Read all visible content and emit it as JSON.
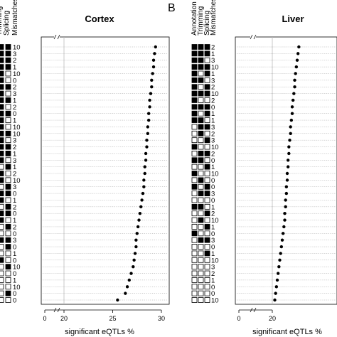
{
  "chart_data": [
    {
      "type": "scatter",
      "panel_label": "",
      "title": "Cortex",
      "xlabel": "significant eQTLs %",
      "xlim": [
        0,
        30
      ],
      "x_break_after": 0,
      "xticks": [
        0,
        20,
        25,
        30
      ],
      "xtick_labels": [
        "0",
        "20",
        "25",
        "30"
      ],
      "row_labels": [
        "Trimming",
        "Splicing",
        "Mismatches"
      ],
      "row_label_display": [
        "Trimming",
        "Splicing",
        "Mismatches"
      ],
      "cutoff_label_col": "visible",
      "rows": [
        {
          "flags": [
            1,
            1,
            1
          ],
          "mismatches": "10",
          "value": 29.4
        },
        {
          "flags": [
            1,
            1,
            1
          ],
          "mismatches": "3",
          "value": 29.3
        },
        {
          "flags": [
            1,
            1,
            1
          ],
          "mismatches": "2",
          "value": 29.2
        },
        {
          "flags": [
            1,
            1,
            0
          ],
          "mismatches": "1",
          "value": 29.2
        },
        {
          "flags": [
            1,
            0,
            1
          ],
          "mismatches": "10",
          "value": 29.1
        },
        {
          "flags": [
            1,
            0,
            0
          ],
          "mismatches": "0",
          "value": 29.0
        },
        {
          "flags": [
            1,
            1,
            1
          ],
          "mismatches": "2",
          "value": 29.0
        },
        {
          "flags": [
            1,
            0,
            1
          ],
          "mismatches": "3",
          "value": 28.9
        },
        {
          "flags": [
            1,
            1,
            0
          ],
          "mismatches": "1",
          "value": 28.8
        },
        {
          "flags": [
            1,
            0,
            1
          ],
          "mismatches": "2",
          "value": 28.8
        },
        {
          "flags": [
            1,
            1,
            0
          ],
          "mismatches": "0",
          "value": 28.7
        },
        {
          "flags": [
            1,
            0,
            1
          ],
          "mismatches": "1",
          "value": 28.7
        },
        {
          "flags": [
            1,
            0,
            0
          ],
          "mismatches": "10",
          "value": 28.6
        },
        {
          "flags": [
            1,
            1,
            1
          ],
          "mismatches": "10",
          "value": 28.6
        },
        {
          "flags": [
            1,
            0,
            0
          ],
          "mismatches": "3",
          "value": 28.5
        },
        {
          "flags": [
            1,
            1,
            1
          ],
          "mismatches": "2",
          "value": 28.5
        },
        {
          "flags": [
            1,
            1,
            0
          ],
          "mismatches": "1",
          "value": 28.4
        },
        {
          "flags": [
            1,
            0,
            1
          ],
          "mismatches": "3",
          "value": 28.4
        },
        {
          "flags": [
            0,
            1,
            0
          ],
          "mismatches": "1",
          "value": 28.3
        },
        {
          "flags": [
            1,
            0,
            1
          ],
          "mismatches": "2",
          "value": 28.3
        },
        {
          "flags": [
            1,
            0,
            0
          ],
          "mismatches": "10",
          "value": 28.2
        },
        {
          "flags": [
            0,
            1,
            1
          ],
          "mismatches": "3",
          "value": 28.2
        },
        {
          "flags": [
            1,
            1,
            0
          ],
          "mismatches": "0",
          "value": 28.1
        },
        {
          "flags": [
            1,
            0,
            1
          ],
          "mismatches": "1",
          "value": 28.0
        },
        {
          "flags": [
            0,
            1,
            0
          ],
          "mismatches": "2",
          "value": 27.9
        },
        {
          "flags": [
            1,
            1,
            1
          ],
          "mismatches": "0",
          "value": 27.8
        },
        {
          "flags": [
            1,
            0,
            1
          ],
          "mismatches": "1",
          "value": 27.7
        },
        {
          "flags": [
            0,
            1,
            0
          ],
          "mismatches": "2",
          "value": 27.6
        },
        {
          "flags": [
            0,
            0,
            1
          ],
          "mismatches": "0",
          "value": 27.5
        },
        {
          "flags": [
            1,
            1,
            0
          ],
          "mismatches": "3",
          "value": 27.4
        },
        {
          "flags": [
            0,
            1,
            1
          ],
          "mismatches": "0",
          "value": 27.4
        },
        {
          "flags": [
            0,
            0,
            0
          ],
          "mismatches": "1",
          "value": 27.3
        },
        {
          "flags": [
            1,
            0,
            0
          ],
          "mismatches": "0",
          "value": 27.2
        },
        {
          "flags": [
            0,
            1,
            1
          ],
          "mismatches": "10",
          "value": 27.1
        },
        {
          "flags": [
            0,
            0,
            0
          ],
          "mismatches": "0",
          "value": 26.9
        },
        {
          "flags": [
            0,
            0,
            0
          ],
          "mismatches": "1",
          "value": 26.7
        },
        {
          "flags": [
            0,
            0,
            0
          ],
          "mismatches": "10",
          "value": 26.5
        },
        {
          "flags": [
            0,
            1,
            0
          ],
          "mismatches": "0",
          "value": 26.3
        },
        {
          "flags": [
            0,
            0,
            0
          ],
          "mismatches": "0",
          "value": 25.5
        }
      ]
    },
    {
      "type": "scatter",
      "panel_label": "B",
      "title": "Liver",
      "xlabel": "significant eQTLs %",
      "xlim": [
        0,
        30
      ],
      "x_break_after": 0,
      "xticks": [
        0,
        20
      ],
      "xtick_labels": [
        "0",
        "20"
      ],
      "row_labels": [
        "Annotation",
        "Trimming",
        "Splicing",
        "Mismatches"
      ],
      "row_label_display": [
        "Annotation",
        "Trimming",
        "Splicing",
        "Mismatches"
      ],
      "rows": [
        {
          "flags": [
            1,
            1,
            1,
            1
          ],
          "mismatches": "2",
          "value": 24.2
        },
        {
          "flags": [
            1,
            1,
            1,
            0
          ],
          "mismatches": "1",
          "value": 24.1
        },
        {
          "flags": [
            1,
            1,
            0,
            1
          ],
          "mismatches": "3",
          "value": 24.0
        },
        {
          "flags": [
            1,
            1,
            1,
            1
          ],
          "mismatches": "10",
          "value": 23.9
        },
        {
          "flags": [
            1,
            0,
            1,
            1
          ],
          "mismatches": "1",
          "value": 23.8
        },
        {
          "flags": [
            1,
            1,
            0,
            0
          ],
          "mismatches": "3",
          "value": 23.7
        },
        {
          "flags": [
            1,
            0,
            1,
            0
          ],
          "mismatches": "2",
          "value": 23.7
        },
        {
          "flags": [
            1,
            1,
            1,
            1
          ],
          "mismatches": "10",
          "value": 23.6
        },
        {
          "flags": [
            1,
            0,
            0,
            0
          ],
          "mismatches": "2",
          "value": 23.5
        },
        {
          "flags": [
            1,
            1,
            1,
            0
          ],
          "mismatches": "0",
          "value": 23.4
        },
        {
          "flags": [
            1,
            0,
            1,
            1
          ],
          "mismatches": "1",
          "value": 23.4
        },
        {
          "flags": [
            1,
            1,
            0,
            1
          ],
          "mismatches": "1",
          "value": 23.3
        },
        {
          "flags": [
            0,
            1,
            1,
            1
          ],
          "mismatches": "3",
          "value": 23.2
        },
        {
          "flags": [
            0,
            1,
            0,
            0
          ],
          "mismatches": "2",
          "value": 23.2
        },
        {
          "flags": [
            0,
            0,
            1,
            1
          ],
          "mismatches": "3",
          "value": 23.1
        },
        {
          "flags": [
            1,
            0,
            0,
            1
          ],
          "mismatches": "10",
          "value": 23.0
        },
        {
          "flags": [
            0,
            1,
            1,
            0
          ],
          "mismatches": "2",
          "value": 23.0
        },
        {
          "flags": [
            1,
            1,
            0,
            1
          ],
          "mismatches": "0",
          "value": 22.9
        },
        {
          "flags": [
            0,
            0,
            1,
            0
          ],
          "mismatches": "1",
          "value": 22.9
        },
        {
          "flags": [
            1,
            0,
            0,
            0
          ],
          "mismatches": "10",
          "value": 22.8
        },
        {
          "flags": [
            0,
            1,
            0,
            1
          ],
          "mismatches": "0",
          "value": 22.8
        },
        {
          "flags": [
            1,
            0,
            1,
            0
          ],
          "mismatches": "0",
          "value": 22.7
        },
        {
          "flags": [
            0,
            1,
            1,
            1
          ],
          "mismatches": "3",
          "value": 22.7
        },
        {
          "flags": [
            0,
            0,
            0,
            0
          ],
          "mismatches": "0",
          "value": 22.6
        },
        {
          "flags": [
            1,
            1,
            0,
            0
          ],
          "mismatches": "1",
          "value": 22.6
        },
        {
          "flags": [
            0,
            0,
            1,
            1
          ],
          "mismatches": "2",
          "value": 22.5
        },
        {
          "flags": [
            0,
            1,
            0,
            0
          ],
          "mismatches": "10",
          "value": 22.5
        },
        {
          "flags": [
            0,
            0,
            1,
            0
          ],
          "mismatches": "1",
          "value": 22.4
        },
        {
          "flags": [
            1,
            0,
            0,
            1
          ],
          "mismatches": "0",
          "value": 22.3
        },
        {
          "flags": [
            0,
            1,
            1,
            0
          ],
          "mismatches": "3",
          "value": 22.2
        },
        {
          "flags": [
            0,
            0,
            0,
            1
          ],
          "mismatches": "0",
          "value": 22.1
        },
        {
          "flags": [
            0,
            0,
            1,
            0
          ],
          "mismatches": "1",
          "value": 22.0
        },
        {
          "flags": [
            0,
            0,
            0,
            0
          ],
          "mismatches": "10",
          "value": 21.9
        },
        {
          "flags": [
            0,
            0,
            0,
            0
          ],
          "mismatches": "3",
          "value": 21.8
        },
        {
          "flags": [
            0,
            0,
            0,
            1
          ],
          "mismatches": "2",
          "value": 21.7
        },
        {
          "flags": [
            0,
            0,
            0,
            0
          ],
          "mismatches": "1",
          "value": 21.6
        },
        {
          "flags": [
            0,
            0,
            0,
            0
          ],
          "mismatches": "0",
          "value": 21.5
        },
        {
          "flags": [
            0,
            0,
            0,
            0
          ],
          "mismatches": "0",
          "value": 21.4
        },
        {
          "flags": [
            0,
            0,
            0,
            0
          ],
          "mismatches": "10",
          "value": 21.3
        }
      ]
    }
  ]
}
